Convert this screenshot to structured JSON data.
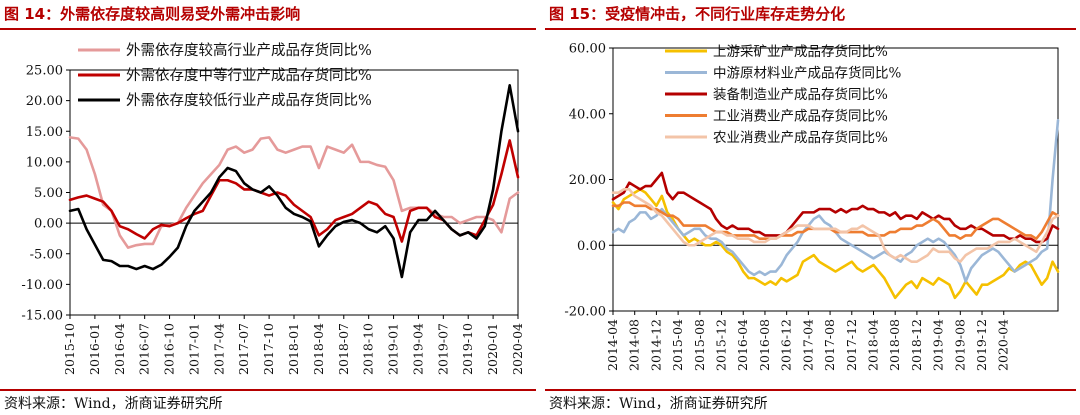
{
  "charts": [
    {
      "title": "图 14：外需依存度较高则易受外需冲击影响",
      "source": "资料来源：Wind，浙商证券研究所",
      "chart_data": {
        "type": "line",
        "title": "图 14：外需依存度较高则易受外需冲击影响",
        "xlabel": "",
        "ylabel": "",
        "ylim": [
          -15,
          25
        ],
        "yticks": [
          -15,
          -10,
          -5,
          0,
          5,
          10,
          15,
          20,
          25
        ],
        "ytick_labels": [
          "-15.00",
          "-10.00",
          "-5.00",
          "0.00",
          "5.00",
          "10.00",
          "15.00",
          "20.00",
          "25.00"
        ],
        "x_start": "2015-10",
        "x_end": "2020-04",
        "x_tick_labels": [
          "2015-10",
          "2016-01",
          "2016-04",
          "2016-07",
          "2016-10",
          "2017-01",
          "2017-04",
          "2017-07",
          "2017-10",
          "2018-01",
          "2018-04",
          "2018-07",
          "2018-10",
          "2019-01",
          "2019-04",
          "2019-07",
          "2019-10",
          "2020-01",
          "2020-04"
        ],
        "legend_position": "top-left",
        "series": [
          {
            "name": "外需依存度较高行业产成品存货同比%",
            "color": "#e59a9a",
            "values": [
              14.0,
              13.8,
              12.0,
              8.0,
              3.0,
              2.0,
              -2.0,
              -4.0,
              -3.6,
              -3.4,
              -3.4,
              -0.5,
              -0.3,
              0.0,
              2.5,
              4.5,
              6.5,
              8.0,
              9.5,
              12.0,
              12.5,
              11.5,
              12.0,
              13.8,
              14.0,
              12.0,
              11.5,
              12.0,
              12.5,
              12.5,
              9.0,
              12.5,
              12.0,
              11.5,
              12.8,
              10.0,
              10.0,
              9.5,
              9.2,
              7.0,
              2.0,
              2.5,
              2.5,
              2.5,
              1.5,
              1.0,
              1.0,
              0.0,
              0.5,
              1.0,
              1.0,
              0.5,
              -1.5,
              4.0,
              5.0
            ]
          },
          {
            "name": "外需依存度中等行业产成品存货同比%",
            "color": "#c00000",
            "values": [
              3.8,
              4.2,
              4.5,
              4.0,
              3.5,
              2.0,
              -0.5,
              -1.0,
              -1.8,
              -2.5,
              -1.0,
              -0.3,
              -0.5,
              0.0,
              0.8,
              1.5,
              2.0,
              4.5,
              7.0,
              7.0,
              6.5,
              5.5,
              5.5,
              5.0,
              4.5,
              5.0,
              4.5,
              3.0,
              2.0,
              1.0,
              -2.0,
              -1.0,
              0.5,
              1.0,
              1.5,
              2.5,
              3.5,
              3.0,
              1.5,
              1.0,
              -3.0,
              2.0,
              2.5,
              2.5,
              1.0,
              0.5,
              -1.0,
              -2.0,
              -1.5,
              -2.0,
              0.5,
              3.0,
              8.0,
              13.5,
              7.5
            ]
          },
          {
            "name": "外需依存度较低行业产成品存货同比%",
            "color": "#000000",
            "values": [
              2.0,
              2.3,
              -1.0,
              -3.5,
              -6.0,
              -6.2,
              -7.0,
              -7.0,
              -7.5,
              -7.0,
              -7.5,
              -6.8,
              -5.5,
              -4.0,
              -0.5,
              2.0,
              3.5,
              5.0,
              7.5,
              9.0,
              8.5,
              6.5,
              5.5,
              5.0,
              6.0,
              4.5,
              2.5,
              1.5,
              1.0,
              0.3,
              -3.8,
              -2.0,
              -0.5,
              0.2,
              0.5,
              0.0,
              -1.0,
              -1.5,
              -0.5,
              -2.5,
              -8.8,
              -1.5,
              0.5,
              0.5,
              2.0,
              0.5,
              -1.0,
              -2.0,
              -1.5,
              -2.5,
              -0.5,
              5.5,
              15.0,
              22.5,
              15.0
            ]
          }
        ]
      }
    },
    {
      "title": "图 15：受疫情冲击，不同行业库存走势分化",
      "source": "资料来源：Wind，浙商证券研究所",
      "chart_data": {
        "type": "line",
        "title": "图 15：受疫情冲击，不同行业库存走势分化",
        "xlabel": "",
        "ylabel": "",
        "ylim": [
          -20,
          60
        ],
        "yticks": [
          -20,
          0,
          20,
          40,
          60
        ],
        "ytick_labels": [
          "-20.00",
          "0.00",
          "20.00",
          "40.00",
          "60.00"
        ],
        "x_start": "2014-04",
        "x_end": "2020-04",
        "x_tick_labels": [
          "2014-04",
          "2014-08",
          "2014-12",
          "2015-04",
          "2015-08",
          "2015-12",
          "2016-04",
          "2016-08",
          "2016-12",
          "2017-04",
          "2017-08",
          "2017-12",
          "2018-04",
          "2018-08",
          "2018-12",
          "2019-04",
          "2019-08",
          "2019-12",
          "2020-04"
        ],
        "legend_position": "top-left",
        "series": [
          {
            "name": "上游采矿业产成品存货同比%",
            "color": "#f5c000",
            "values": [
              13,
              11,
              14,
              15,
              16,
              17,
              16,
              14,
              12,
              15,
              10,
              8,
              5,
              3,
              1,
              2,
              1,
              0,
              0,
              1,
              0,
              -2,
              -3,
              -5,
              -8,
              -10,
              -10,
              -11,
              -12,
              -11,
              -12,
              -10,
              -11,
              -10,
              -9,
              -5,
              -4,
              -3,
              -5,
              -6,
              -7,
              -8,
              -7,
              -6,
              -5,
              -7,
              -8,
              -7,
              -6,
              -8,
              -10,
              -13,
              -16,
              -14,
              -12,
              -11,
              -13,
              -10,
              -11,
              -12,
              -10,
              -11,
              -12,
              -16,
              -14,
              -11,
              -13,
              -15,
              -12,
              -12,
              -11,
              -10,
              -9,
              -7,
              -8,
              -6,
              -5,
              -6,
              -9,
              -12,
              -10,
              -5,
              -8
            ]
          },
          {
            "name": "中游原材料业产成品存货同比%",
            "color": "#9bb7d7",
            "values": [
              4,
              5,
              4,
              7,
              8,
              10,
              10,
              8,
              9,
              11,
              9,
              7,
              5,
              3,
              4,
              5,
              5,
              3,
              2,
              2,
              1,
              -1,
              -2,
              -4,
              -6,
              -8,
              -9,
              -8,
              -9,
              -8,
              -8,
              -6,
              -3,
              -1,
              1,
              4,
              6,
              8,
              9,
              7,
              6,
              4,
              2,
              1,
              0,
              -1,
              -2,
              -3,
              -4,
              -3,
              -2,
              -3,
              -4,
              -5,
              -3,
              -2,
              0,
              1,
              2,
              1,
              2,
              1,
              -1,
              -3,
              -6,
              -11,
              -7,
              -5,
              -3,
              -2,
              -1,
              -2,
              -4,
              -6,
              -8,
              -7,
              -6,
              -5,
              -4,
              -2,
              -1,
              20,
              38
            ]
          },
          {
            "name": "装备制造业产成品存货同比%",
            "color": "#b40000",
            "values": [
              14,
              15,
              16,
              19,
              18,
              17,
              18,
              18,
              20,
              22,
              16,
              14,
              16,
              16,
              15,
              14,
              13,
              12,
              11,
              8,
              6,
              5,
              6,
              5,
              5,
              5,
              4,
              4,
              3,
              3,
              3,
              3,
              4,
              6,
              8,
              10,
              10,
              10,
              11,
              11,
              11,
              10,
              11,
              10,
              11,
              11,
              12,
              11,
              11,
              10,
              10,
              9,
              10,
              8,
              9,
              9,
              8,
              10,
              9,
              8,
              9,
              8,
              8,
              6,
              5,
              5,
              6,
              5,
              5,
              4,
              3,
              3,
              3,
              2,
              2,
              3,
              2,
              2,
              1,
              1,
              2,
              6,
              5
            ]
          },
          {
            "name": "工业消费业产成品存货同比%",
            "color": "#ee7d31",
            "values": [
              12,
              12,
              13,
              13,
              12,
              12,
              12,
              11,
              11,
              10,
              9,
              9,
              8,
              6,
              6,
              6,
              6,
              6,
              5,
              4,
              4,
              4,
              3,
              3,
              3,
              3,
              3,
              2,
              2,
              2,
              2,
              3,
              3,
              3,
              4,
              4,
              5,
              5,
              5,
              5,
              5,
              4,
              4,
              4,
              4,
              4,
              4,
              3,
              3,
              3,
              3,
              4,
              4,
              5,
              5,
              5,
              6,
              6,
              7,
              8,
              7,
              5,
              3,
              3,
              2,
              3,
              3,
              5,
              6,
              7,
              8,
              8,
              7,
              6,
              5,
              4,
              3,
              3,
              2,
              4,
              7,
              10,
              9
            ]
          },
          {
            "name": "农业消费业产成品存货同比%",
            "color": "#f3c4a8",
            "values": [
              16,
              16,
              17,
              17,
              15,
              14,
              13,
              12,
              10,
              9,
              7,
              5,
              3,
              1,
              0,
              0,
              1,
              2,
              3,
              4,
              4,
              3,
              3,
              2,
              2,
              2,
              1,
              1,
              1,
              2,
              2,
              3,
              4,
              5,
              6,
              6,
              6,
              5,
              5,
              5,
              5,
              5,
              4,
              4,
              5,
              5,
              6,
              5,
              4,
              3,
              -1,
              -3,
              -4,
              -3,
              -4,
              -5,
              -5,
              -4,
              -3,
              -1,
              -2,
              -2,
              -2,
              -4,
              -5,
              -3,
              -2,
              -1,
              -1,
              -1,
              0,
              1,
              1,
              1,
              2,
              1,
              0,
              -1,
              -2,
              1,
              4,
              8,
              9
            ]
          }
        ]
      }
    }
  ]
}
